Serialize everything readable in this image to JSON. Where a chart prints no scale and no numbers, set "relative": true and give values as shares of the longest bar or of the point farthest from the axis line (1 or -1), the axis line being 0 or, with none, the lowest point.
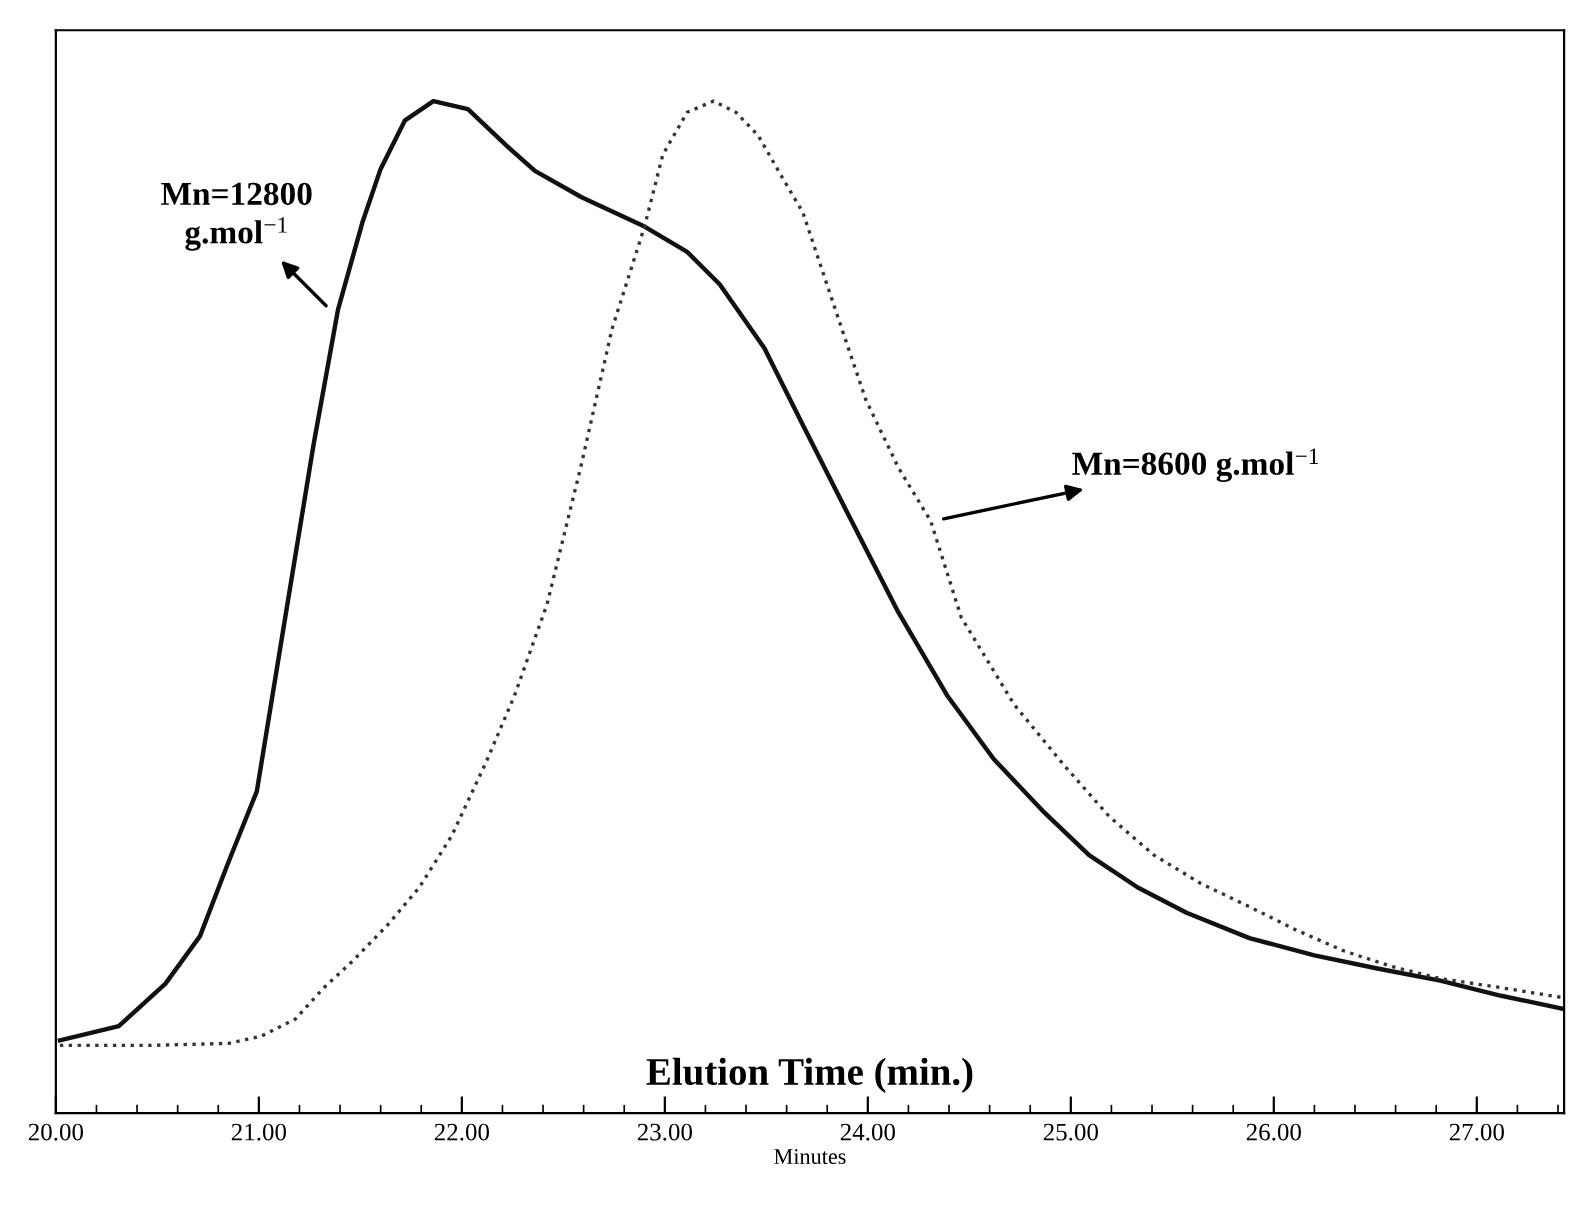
{
  "chart_data": {
    "type": "line",
    "relative": true,
    "xlabel": "Minutes",
    "xlim": [
      20,
      27.43
    ],
    "xticks": [
      {
        "value": 20,
        "label": "20.00"
      },
      {
        "value": 21,
        "label": "21.00"
      },
      {
        "value": 22,
        "label": "22.00"
      },
      {
        "value": 23,
        "label": "23.00"
      },
      {
        "value": 24,
        "label": "24.00"
      },
      {
        "value": 25,
        "label": "25.00"
      },
      {
        "value": 26,
        "label": "26.00"
      },
      {
        "value": 27,
        "label": "27.00"
      }
    ],
    "grid": false,
    "legend": false,
    "marker": "none",
    "series": [
      {
        "color": "#111111",
        "line_style": "solid",
        "x": [
          20.02,
          20.31,
          20.54,
          20.71,
          20.85,
          20.99,
          21.13,
          21.27,
          21.39,
          21.51,
          21.6,
          21.72,
          21.86,
          22.03,
          22.22,
          22.36,
          22.59,
          22.9,
          23.11,
          23.27,
          23.49,
          23.68,
          23.92,
          24.15,
          24.39,
          24.62,
          24.86,
          25.09,
          25.33,
          25.57,
          25.88,
          26.2,
          26.51,
          26.82,
          27.12,
          27.43
        ],
        "values": [
          0.072,
          0.086,
          0.128,
          0.175,
          0.248,
          0.318,
          0.49,
          0.661,
          0.794,
          0.88,
          0.933,
          0.981,
          1.0,
          0.992,
          0.956,
          0.931,
          0.905,
          0.876,
          0.851,
          0.819,
          0.756,
          0.68,
          0.585,
          0.495,
          0.413,
          0.35,
          0.299,
          0.255,
          0.223,
          0.198,
          0.173,
          0.156,
          0.143,
          0.131,
          0.116,
          0.103
        ]
      },
      {
        "color": "#333333",
        "line_style": "dotted",
        "x": [
          20.02,
          20.47,
          20.85,
          21.01,
          21.18,
          21.32,
          21.46,
          21.63,
          21.79,
          21.95,
          22.12,
          22.26,
          22.42,
          22.59,
          22.74,
          22.9,
          22.99,
          23.11,
          23.24,
          23.35,
          23.46,
          23.58,
          23.68,
          23.84,
          23.99,
          24.15,
          24.31,
          24.46,
          24.72,
          24.97,
          25.19,
          25.41,
          25.64,
          25.88,
          26.11,
          26.35,
          26.58,
          26.82,
          27.12,
          27.43
        ],
        "values": [
          0.067,
          0.067,
          0.069,
          0.076,
          0.093,
          0.124,
          0.15,
          0.185,
          0.223,
          0.274,
          0.347,
          0.413,
          0.503,
          0.642,
          0.775,
          0.876,
          0.947,
          0.989,
          1.0,
          0.989,
          0.966,
          0.924,
          0.89,
          0.794,
          0.705,
          0.638,
          0.585,
          0.49,
          0.404,
          0.343,
          0.293,
          0.255,
          0.227,
          0.204,
          0.181,
          0.16,
          0.145,
          0.133,
          0.124,
          0.114
        ]
      }
    ],
    "annotations": [
      {
        "text": "Mn=12800\ng.mol$^{−1}$",
        "x": 21.37,
        "y": 0.79
      },
      {
        "text": "Mn=8600 g.mol$^{−1}$",
        "x": 24.32,
        "y": 0.585
      },
      "Elution Time (min.)"
    ]
  }
}
